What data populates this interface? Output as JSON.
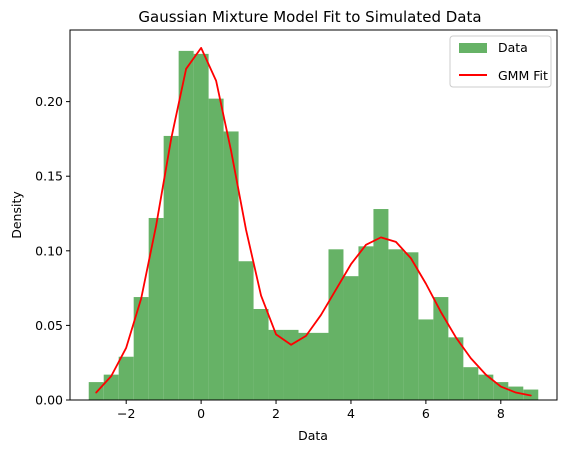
{
  "chart_data": {
    "type": "bar",
    "title": "Gaussian Mixture Model Fit to Simulated Data",
    "xlabel": "Data",
    "ylabel": "Density",
    "xlim": [
      -3.5,
      9.5
    ],
    "ylim": [
      0,
      0.248
    ],
    "xticks": [
      -2,
      0,
      2,
      4,
      6,
      8
    ],
    "xtick_labels": [
      "−2",
      "0",
      "2",
      "4",
      "6",
      "8"
    ],
    "yticks": [
      0.0,
      0.05,
      0.1,
      0.15,
      0.2
    ],
    "ytick_labels": [
      "0.00",
      "0.05",
      "0.10",
      "0.15",
      "0.20"
    ],
    "grid": false,
    "legend_position": "top-right",
    "histogram": {
      "name": "Data",
      "color": "#66b266",
      "bin_edges": [
        -3.0,
        -2.6,
        -2.2,
        -1.8,
        -1.4,
        -1.0,
        -0.6,
        -0.2,
        0.2,
        0.6,
        1.0,
        1.4,
        1.8,
        2.2,
        2.6,
        3.0,
        3.4,
        3.8,
        4.2,
        4.6,
        5.0,
        5.4,
        5.8,
        6.2,
        6.6,
        7.0,
        7.4,
        7.8,
        8.2,
        8.6,
        9.0
      ],
      "values": [
        0.012,
        0.017,
        0.029,
        0.069,
        0.122,
        0.177,
        0.234,
        0.232,
        0.202,
        0.18,
        0.093,
        0.061,
        0.047,
        0.047,
        0.045,
        0.045,
        0.101,
        0.083,
        0.103,
        0.128,
        0.101,
        0.099,
        0.054,
        0.069,
        0.042,
        0.022,
        0.017,
        0.012,
        0.009,
        0.007
      ]
    },
    "series": [
      {
        "name": "GMM Fit",
        "type": "line",
        "color": "#ff0000",
        "x": [
          -2.8,
          -2.4,
          -2.0,
          -1.6,
          -1.2,
          -0.8,
          -0.4,
          0.0,
          0.4,
          0.8,
          1.2,
          1.6,
          2.0,
          2.4,
          2.8,
          3.2,
          3.6,
          4.0,
          4.4,
          4.8,
          5.2,
          5.6,
          6.0,
          6.4,
          6.8,
          7.2,
          7.6,
          8.0,
          8.4,
          8.8
        ],
        "y": [
          0.005,
          0.016,
          0.035,
          0.068,
          0.117,
          0.175,
          0.222,
          0.236,
          0.214,
          0.167,
          0.114,
          0.07,
          0.044,
          0.037,
          0.043,
          0.057,
          0.074,
          0.091,
          0.104,
          0.109,
          0.106,
          0.095,
          0.078,
          0.059,
          0.042,
          0.028,
          0.017,
          0.009,
          0.005,
          0.003
        ]
      }
    ],
    "legend": [
      {
        "label": "Data",
        "kind": "patch",
        "color": "#66b266"
      },
      {
        "label": "GMM Fit",
        "kind": "line",
        "color": "#ff0000"
      }
    ]
  }
}
